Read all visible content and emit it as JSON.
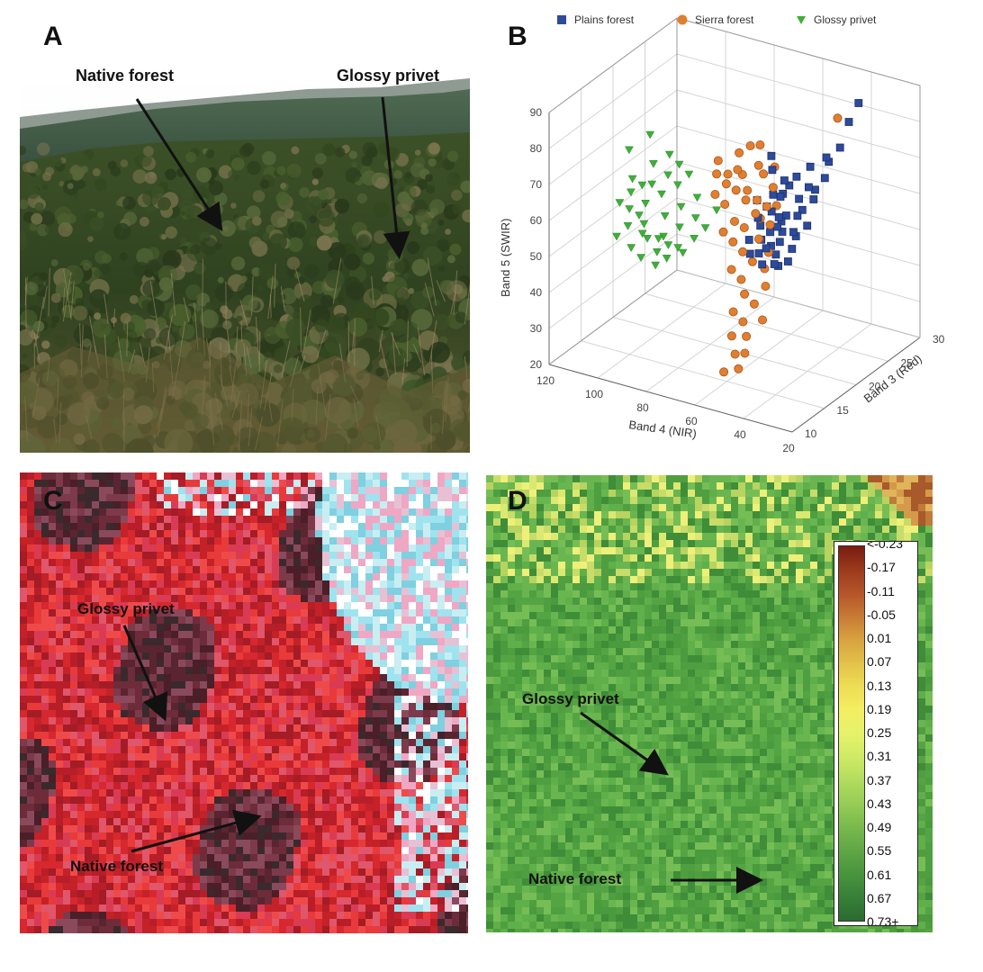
{
  "panels": {
    "a": {
      "letter": "A",
      "labels": {
        "native_forest": "Native forest",
        "glossy_privet": "Glossy privet"
      }
    },
    "b": {
      "letter": "B"
    },
    "c": {
      "letter": "C",
      "labels": {
        "glossy_privet": "Glossy privet",
        "native_forest": "Native forest"
      }
    },
    "d": {
      "letter": "D",
      "labels": {
        "glossy_privet": "Glossy privet",
        "native_forest": "Native forest"
      },
      "colorbar_labels": [
        "<-0.23",
        "-0.17",
        "-0.11",
        "-0.05",
        "0.01",
        "0.07",
        "0.13",
        "0.19",
        "0.25",
        "0.31",
        "0.37",
        "0.43",
        "0.49",
        "0.55",
        "0.61",
        "0.67",
        "0.73+"
      ],
      "colorbar_colors": [
        "#7a1c12",
        "#9a3a1c",
        "#b5542a",
        "#c87a35",
        "#d8a240",
        "#e3c24a",
        "#eedd55",
        "#f3ee62",
        "#e6f26a",
        "#cfea66",
        "#b3dc5e",
        "#96cc56",
        "#7ab94d",
        "#60a646",
        "#4a943f",
        "#387f38",
        "#2a6b31"
      ]
    }
  },
  "chart_data": {
    "type": "scatter",
    "subtype": "3d-scatter",
    "xlabel": "Band 4 (NIR)",
    "ylabel": "Band 3 (Red)",
    "zlabel": "Band 5 (SWIR)",
    "xlim": [
      20,
      120
    ],
    "ylim": [
      10,
      30
    ],
    "zlim": [
      20,
      90
    ],
    "x_ticks": [
      120,
      100,
      80,
      60,
      40,
      20
    ],
    "y_ticks": [
      10,
      15,
      20,
      25,
      30
    ],
    "z_ticks": [
      20,
      30,
      40,
      50,
      60,
      70,
      80,
      90
    ],
    "legend_position": "top",
    "grid": true,
    "series": [
      {
        "name": "Plains forest",
        "marker": "square",
        "color": "#2e4a9a",
        "points": [
          [
            55,
            24,
            66
          ],
          [
            52,
            25,
            68
          ],
          [
            50,
            24,
            64
          ],
          [
            48,
            26,
            70
          ],
          [
            46,
            25,
            66
          ],
          [
            58,
            23,
            62
          ],
          [
            54,
            24,
            60
          ],
          [
            50,
            25,
            62
          ],
          [
            60,
            22,
            58
          ],
          [
            56,
            22,
            56
          ],
          [
            52,
            23,
            57
          ],
          [
            48,
            23,
            55
          ],
          [
            58,
            21,
            54
          ],
          [
            54,
            21,
            52
          ],
          [
            50,
            22,
            53
          ],
          [
            62,
            21,
            55
          ],
          [
            57,
            20,
            51
          ],
          [
            53,
            20,
            50
          ],
          [
            49,
            21,
            51
          ],
          [
            60,
            20,
            49
          ],
          [
            56,
            19,
            48
          ],
          [
            52,
            20,
            47
          ],
          [
            48,
            20,
            49
          ],
          [
            62,
            22,
            59
          ],
          [
            59,
            23,
            61
          ],
          [
            55,
            21,
            56
          ],
          [
            51,
            22,
            54
          ],
          [
            64,
            20,
            52
          ],
          [
            61,
            19,
            50
          ],
          [
            57,
            22,
            57
          ],
          [
            53,
            21,
            55
          ],
          [
            58,
            24,
            63
          ],
          [
            45,
            27,
            72
          ],
          [
            44,
            28,
            78
          ],
          [
            47,
            26,
            69
          ],
          [
            60,
            24,
            64
          ],
          [
            62,
            23,
            61
          ],
          [
            66,
            22,
            60
          ],
          [
            63,
            21,
            57
          ],
          [
            59,
            20,
            53
          ],
          [
            55,
            20,
            52
          ],
          [
            51,
            19,
            49
          ],
          [
            54,
            22,
            58
          ],
          [
            50,
            23,
            59
          ],
          [
            48,
            24,
            61
          ],
          [
            65,
            24,
            66
          ],
          [
            68,
            25,
            68
          ],
          [
            40,
            28,
            84
          ]
        ]
      },
      {
        "name": "Sierra forest",
        "marker": "circle",
        "color": "#e07f30",
        "points": [
          [
            72,
            22,
            66
          ],
          [
            68,
            23,
            68
          ],
          [
            76,
            21,
            64
          ],
          [
            70,
            22,
            62
          ],
          [
            66,
            22,
            60
          ],
          [
            74,
            20,
            60
          ],
          [
            78,
            20,
            62
          ],
          [
            64,
            21,
            58
          ],
          [
            70,
            20,
            56
          ],
          [
            66,
            20,
            55
          ],
          [
            62,
            21,
            57
          ],
          [
            72,
            19,
            54
          ],
          [
            68,
            19,
            52
          ],
          [
            60,
            20,
            53
          ],
          [
            80,
            21,
            66
          ],
          [
            82,
            22,
            68
          ],
          [
            76,
            23,
            70
          ],
          [
            70,
            24,
            72
          ],
          [
            62,
            23,
            63
          ],
          [
            58,
            22,
            60
          ],
          [
            64,
            19,
            50
          ],
          [
            60,
            19,
            48
          ],
          [
            56,
            20,
            50
          ],
          [
            66,
            18,
            46
          ],
          [
            62,
            18,
            44
          ],
          [
            58,
            17,
            42
          ],
          [
            54,
            17,
            40
          ],
          [
            60,
            16,
            38
          ],
          [
            56,
            16,
            36
          ],
          [
            52,
            15,
            34
          ],
          [
            58,
            15,
            33
          ],
          [
            54,
            14,
            30
          ],
          [
            50,
            13,
            28
          ],
          [
            56,
            13,
            26
          ],
          [
            66,
            23,
            66
          ],
          [
            74,
            22,
            67
          ],
          [
            78,
            22,
            65
          ],
          [
            62,
            22,
            59
          ],
          [
            46,
            27,
            80
          ],
          [
            64,
            24,
            67
          ],
          [
            68,
            21,
            61
          ],
          [
            72,
            21,
            63
          ],
          [
            58,
            21,
            56
          ],
          [
            74,
            24,
            71
          ],
          [
            52,
            18,
            44
          ],
          [
            55,
            19,
            47
          ],
          [
            48,
            16,
            38
          ],
          [
            50,
            14,
            31
          ]
        ]
      },
      {
        "name": "Glossy privet",
        "marker": "triangle-down",
        "color": "#3fae3a",
        "points": [
          [
            100,
            20,
            58
          ],
          [
            104,
            19,
            56
          ],
          [
            96,
            19,
            54
          ],
          [
            108,
            18,
            55
          ],
          [
            102,
            18,
            52
          ],
          [
            94,
            18,
            50
          ],
          [
            98,
            17,
            50
          ],
          [
            106,
            17,
            52
          ],
          [
            110,
            19,
            58
          ],
          [
            92,
            20,
            56
          ],
          [
            90,
            19,
            52
          ],
          [
            96,
            21,
            60
          ],
          [
            100,
            21,
            62
          ],
          [
            88,
            18,
            48
          ],
          [
            94,
            17,
            47
          ],
          [
            102,
            16,
            48
          ],
          [
            108,
            16,
            50
          ],
          [
            112,
            18,
            56
          ],
          [
            86,
            20,
            54
          ],
          [
            84,
            19,
            50
          ],
          [
            92,
            16,
            45
          ],
          [
            98,
            16,
            46
          ],
          [
            104,
            20,
            60
          ],
          [
            106,
            21,
            64
          ],
          [
            110,
            22,
            70
          ],
          [
            88,
            21,
            58
          ],
          [
            82,
            20,
            52
          ],
          [
            90,
            17,
            46
          ],
          [
            96,
            18,
            49
          ],
          [
            100,
            17,
            51
          ],
          [
            104,
            18,
            54
          ],
          [
            112,
            20,
            60
          ],
          [
            94,
            22,
            62
          ],
          [
            80,
            21,
            56
          ],
          [
            86,
            18,
            47
          ],
          [
            108,
            20,
            59
          ],
          [
            98,
            22,
            64
          ],
          [
            102,
            22,
            66
          ],
          [
            92,
            18,
            48
          ],
          [
            116,
            21,
            66
          ]
        ]
      }
    ]
  }
}
